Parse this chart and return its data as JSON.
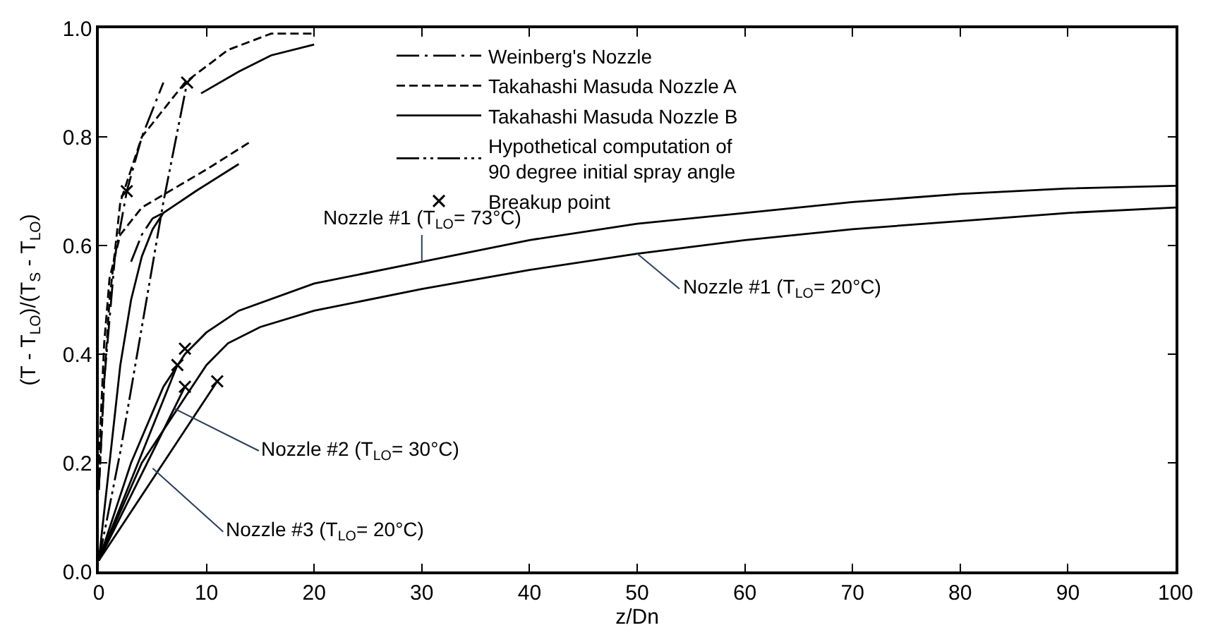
{
  "chart_data": {
    "type": "line",
    "xlabel": "z/Dn",
    "ylabel": "(T - T$_{LO}$)/(T$_{S}$ - T$_{LO}$)",
    "xlim": [
      0,
      100
    ],
    "xticks": [
      0,
      10,
      20,
      30,
      40,
      50,
      60,
      70,
      80,
      90,
      100
    ],
    "ylim": [
      0,
      1.0
    ],
    "yticks": [
      {
        "value": 0,
        "label": "0.0"
      },
      {
        "value": 0.2,
        "label": "0.2"
      },
      {
        "value": 0.4,
        "label": "0.4"
      },
      {
        "value": 0.6,
        "label": "0.6"
      },
      {
        "value": 0.8,
        "label": "0.8"
      },
      {
        "value": 1.0,
        "label": "1.0"
      }
    ],
    "legend": "top",
    "series": [
      {
        "color": "#000000",
        "line_style": "solid",
        "x": [
          0,
          3,
          6,
          8,
          10,
          13,
          20,
          30,
          40,
          50,
          60,
          70,
          80,
          90,
          100
        ],
        "values": [
          0.02,
          0.2,
          0.34,
          0.4,
          0.44,
          0.48,
          0.53,
          0.57,
          0.61,
          0.64,
          0.66,
          0.68,
          0.695,
          0.705,
          0.71
        ]
      },
      {
        "color": "#000000",
        "line_style": "solid",
        "x": [
          0,
          4,
          8,
          10,
          12,
          15,
          20,
          30,
          40,
          50,
          60,
          70,
          80,
          90,
          100
        ],
        "values": [
          0.02,
          0.2,
          0.32,
          0.38,
          0.42,
          0.45,
          0.48,
          0.52,
          0.555,
          0.585,
          0.61,
          0.63,
          0.645,
          0.66,
          0.67
        ]
      },
      {
        "color": "#000000",
        "line_style": "solid",
        "x": [
          0,
          7.3
        ],
        "values": [
          0.02,
          0.38
        ]
      },
      {
        "color": "#000000",
        "line_style": "solid",
        "x": [
          0,
          8
        ],
        "values": [
          0.02,
          0.34
        ]
      },
      {
        "color": "#000000",
        "line_style": "solid",
        "x": [
          0,
          11
        ],
        "values": [
          0.02,
          0.35
        ]
      },
      {
        "name": "Weinberg's Nozzle",
        "color": "#000000",
        "line_style": "dashdot",
        "x": [
          0,
          0.5,
          1.5,
          2.6,
          4,
          6
        ],
        "values": [
          0.15,
          0.35,
          0.58,
          0.7,
          0.8,
          0.9
        ]
      },
      {
        "color": "#000000",
        "line_style": "dashdot",
        "x": [
          3,
          4,
          5,
          6
        ],
        "values": [
          0.57,
          0.62,
          0.65,
          0.66
        ]
      },
      {
        "name": "Takahashi Masuda Nozzle A",
        "color": "#000000",
        "line_style": "dashed",
        "x": [
          0,
          0.5,
          1,
          2,
          4,
          8,
          12,
          16,
          20
        ],
        "values": [
          0.15,
          0.35,
          0.5,
          0.68,
          0.8,
          0.9,
          0.96,
          0.99,
          0.99
        ]
      },
      {
        "color": "#000000",
        "line_style": "dashed",
        "x": [
          0,
          0.5,
          1,
          2,
          4,
          10,
          14
        ],
        "values": [
          0.2,
          0.42,
          0.54,
          0.62,
          0.67,
          0.74,
          0.79
        ]
      },
      {
        "name": "Takahashi Masuda Nozzle B",
        "color": "#000000",
        "line_style": "solid",
        "x": [
          9.5,
          13,
          16,
          20
        ],
        "values": [
          0.88,
          0.92,
          0.95,
          0.97
        ]
      },
      {
        "color": "#000000",
        "line_style": "solid",
        "x": [
          0,
          1,
          2,
          3,
          4,
          5,
          6,
          9,
          13
        ],
        "values": [
          0.02,
          0.2,
          0.38,
          0.5,
          0.58,
          0.63,
          0.66,
          0.7,
          0.75
        ]
      },
      {
        "name": "Hypothetical computation of\n90 degree initial spray angle",
        "color": "#000000",
        "line_style": "dashdotdot",
        "x": [
          0,
          2,
          4,
          6,
          8.2
        ],
        "values": [
          0.02,
          0.22,
          0.45,
          0.68,
          0.9
        ]
      },
      {
        "name": "Breakup point",
        "type": "scatter",
        "marker": "cross",
        "color": "#000000",
        "x": [
          7.3,
          8,
          8,
          11,
          8.2,
          2.6
        ],
        "values": [
          0.38,
          0.41,
          0.34,
          0.35,
          0.9,
          0.7
        ]
      }
    ],
    "annotations": [
      {
        "text": "Nozzle #1 (T$_{LO}$= 73°C)",
        "x": 30,
        "y": 0.57
      },
      {
        "text": "Nozzle #1 (T$_{LO}$= 20°C)",
        "x": 50,
        "y": 0.585
      },
      {
        "text": "Nozzle #2 (T$_{LO}$= 30°C)",
        "x": 7,
        "y": 0.3
      },
      {
        "text": "Nozzle #3 (T$_{LO}$= 20°C)",
        "x": 5,
        "y": 0.19
      }
    ]
  }
}
